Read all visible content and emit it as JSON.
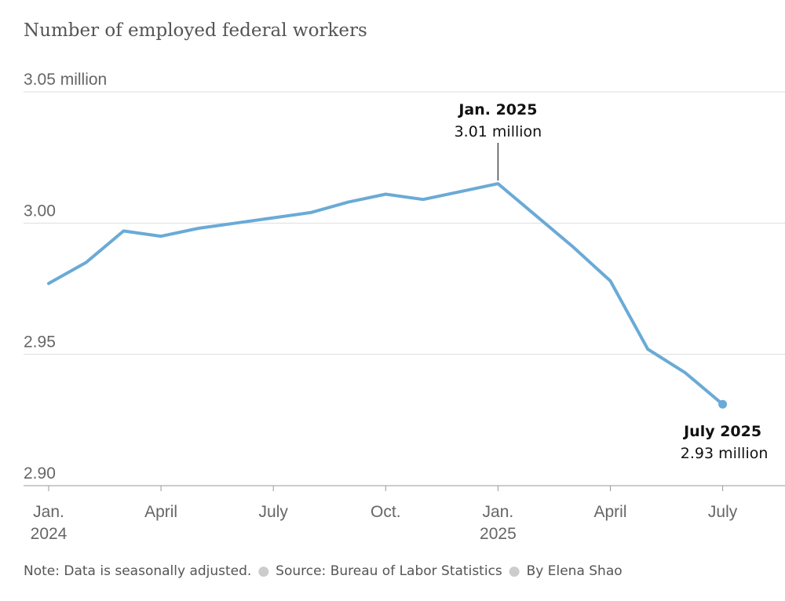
{
  "title": "Number of employed federal workers",
  "footer": {
    "note": "Note: Data is seasonally adjusted.",
    "source": "Source: Bureau of Labor Statistics",
    "byline": "By Elena Shao"
  },
  "colors": {
    "line": "#6aaad6",
    "grid": "#dddddd",
    "text": "#666666"
  },
  "chart_data": {
    "type": "line",
    "title": "Number of employed federal workers",
    "unit": "million",
    "ylim": [
      2.9,
      3.05
    ],
    "yticks": [
      {
        "value": 3.05,
        "label": "3.05 million"
      },
      {
        "value": 3.0,
        "label": "3.00"
      },
      {
        "value": 2.95,
        "label": "2.95"
      },
      {
        "value": 2.9,
        "label": "2.90"
      }
    ],
    "xticks": [
      {
        "index": 0,
        "label": [
          "Jan.",
          "2024"
        ]
      },
      {
        "index": 3,
        "label": [
          "April"
        ]
      },
      {
        "index": 6,
        "label": [
          "July"
        ]
      },
      {
        "index": 9,
        "label": [
          "Oct."
        ]
      },
      {
        "index": 12,
        "label": [
          "Jan.",
          "2025"
        ]
      },
      {
        "index": 15,
        "label": [
          "April"
        ]
      },
      {
        "index": 18,
        "label": [
          "July"
        ]
      }
    ],
    "grid": true,
    "x": [
      "2024-01",
      "2024-02",
      "2024-03",
      "2024-04",
      "2024-05",
      "2024-06",
      "2024-07",
      "2024-08",
      "2024-09",
      "2024-10",
      "2024-11",
      "2024-12",
      "2025-01",
      "2025-02",
      "2025-03",
      "2025-04",
      "2025-05",
      "2025-06",
      "2025-07"
    ],
    "series": [
      {
        "values": [
          2.977,
          2.985,
          2.997,
          2.995,
          2.998,
          3.0,
          3.002,
          3.004,
          3.008,
          3.011,
          3.009,
          3.012,
          3.015,
          3.003,
          2.991,
          2.978,
          2.952,
          2.943,
          2.931
        ]
      }
    ],
    "annotations": [
      {
        "index": 12,
        "heading": "Jan. 2025",
        "value": "3.01 million"
      },
      {
        "index": 18,
        "heading": "July 2025",
        "value": "2.93 million"
      }
    ]
  }
}
